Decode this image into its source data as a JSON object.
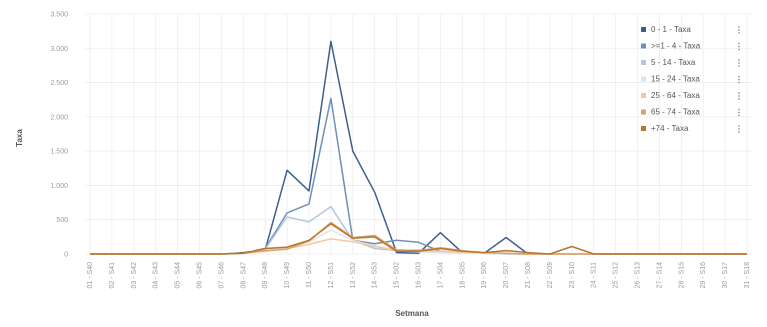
{
  "chart_data": {
    "type": "line",
    "xlabel": "Setmana",
    "ylabel": "Taxa",
    "ylim": [
      0,
      3500
    ],
    "yticks": [
      0,
      500,
      1000,
      1500,
      2000,
      2500,
      3000,
      3500
    ],
    "ytick_labels": [
      "0",
      "500",
      "1.000",
      "1.500",
      "2.000",
      "2.500",
      "3.000",
      "3.500"
    ],
    "grid": true,
    "legend_position": "top-right",
    "categories": [
      "01 - S40",
      "02 - S41",
      "03 - S42",
      "04 - S43",
      "05 - S44",
      "06 - S45",
      "07 - S46",
      "08 - S47",
      "09 - S48",
      "10 - S49",
      "11 - S50",
      "12 - S51",
      "13 - S52",
      "14 - S53",
      "15 - S02",
      "16 - S03",
      "17 - S04",
      "18 - S05",
      "19 - S06",
      "20 - S07",
      "21 - S08",
      "22 - S09",
      "23 - S10",
      "24 - S11",
      "25 - S12",
      "26 - S13",
      "27 - S14",
      "28 - S15",
      "29 - S16",
      "30 - S17",
      "31 - S18"
    ],
    "series": [
      {
        "name": "0 - 1 - Taxa",
        "color": "#3d5f8c",
        "values": [
          0,
          0,
          0,
          0,
          0,
          0,
          0,
          20,
          60,
          1220,
          920,
          3100,
          1500,
          900,
          20,
          10,
          310,
          20,
          10,
          240,
          0,
          0,
          0,
          0,
          0,
          0,
          0,
          0,
          0,
          0,
          0
        ]
      },
      {
        "name": ">=1 - 4 - Taxa",
        "color": "#6f8fb8",
        "values": [
          0,
          0,
          0,
          0,
          0,
          0,
          0,
          10,
          80,
          600,
          730,
          2270,
          200,
          150,
          200,
          170,
          40,
          10,
          10,
          0,
          0,
          0,
          0,
          0,
          0,
          0,
          0,
          0,
          0,
          0,
          0
        ]
      },
      {
        "name": "5 - 14 - Taxa",
        "color": "#b3c7de",
        "values": [
          0,
          0,
          0,
          0,
          0,
          0,
          0,
          10,
          70,
          540,
          470,
          690,
          200,
          80,
          50,
          30,
          30,
          10,
          10,
          0,
          0,
          0,
          0,
          0,
          0,
          0,
          0,
          0,
          0,
          0,
          0
        ]
      },
      {
        "name": "15 - 24 - Taxa",
        "color": "#e3e3e3",
        "values": [
          0,
          0,
          0,
          0,
          0,
          0,
          0,
          10,
          50,
          100,
          180,
          350,
          200,
          120,
          60,
          30,
          20,
          10,
          10,
          0,
          0,
          0,
          0,
          0,
          0,
          0,
          0,
          0,
          0,
          0,
          0
        ]
      },
      {
        "name": "25 - 64 - Taxa",
        "color": "#f4c7a1",
        "values": [
          0,
          0,
          0,
          0,
          0,
          0,
          0,
          10,
          40,
          80,
          140,
          220,
          180,
          110,
          50,
          60,
          40,
          30,
          20,
          10,
          0,
          0,
          0,
          0,
          0,
          0,
          0,
          0,
          0,
          0,
          0
        ]
      },
      {
        "name": "65 - 74 - Taxa",
        "color": "#dba36a",
        "values": [
          0,
          0,
          0,
          0,
          0,
          0,
          0,
          10,
          50,
          70,
          190,
          460,
          240,
          270,
          60,
          50,
          90,
          50,
          20,
          10,
          0,
          0,
          0,
          0,
          0,
          0,
          0,
          0,
          0,
          0,
          0
        ]
      },
      {
        "name": "+74 - Taxa",
        "color": "#b8752c",
        "values": [
          0,
          0,
          0,
          0,
          0,
          0,
          0,
          10,
          80,
          100,
          200,
          440,
          230,
          250,
          40,
          40,
          80,
          40,
          20,
          50,
          20,
          0,
          110,
          0,
          0,
          0,
          0,
          0,
          0,
          0,
          0
        ]
      }
    ]
  }
}
